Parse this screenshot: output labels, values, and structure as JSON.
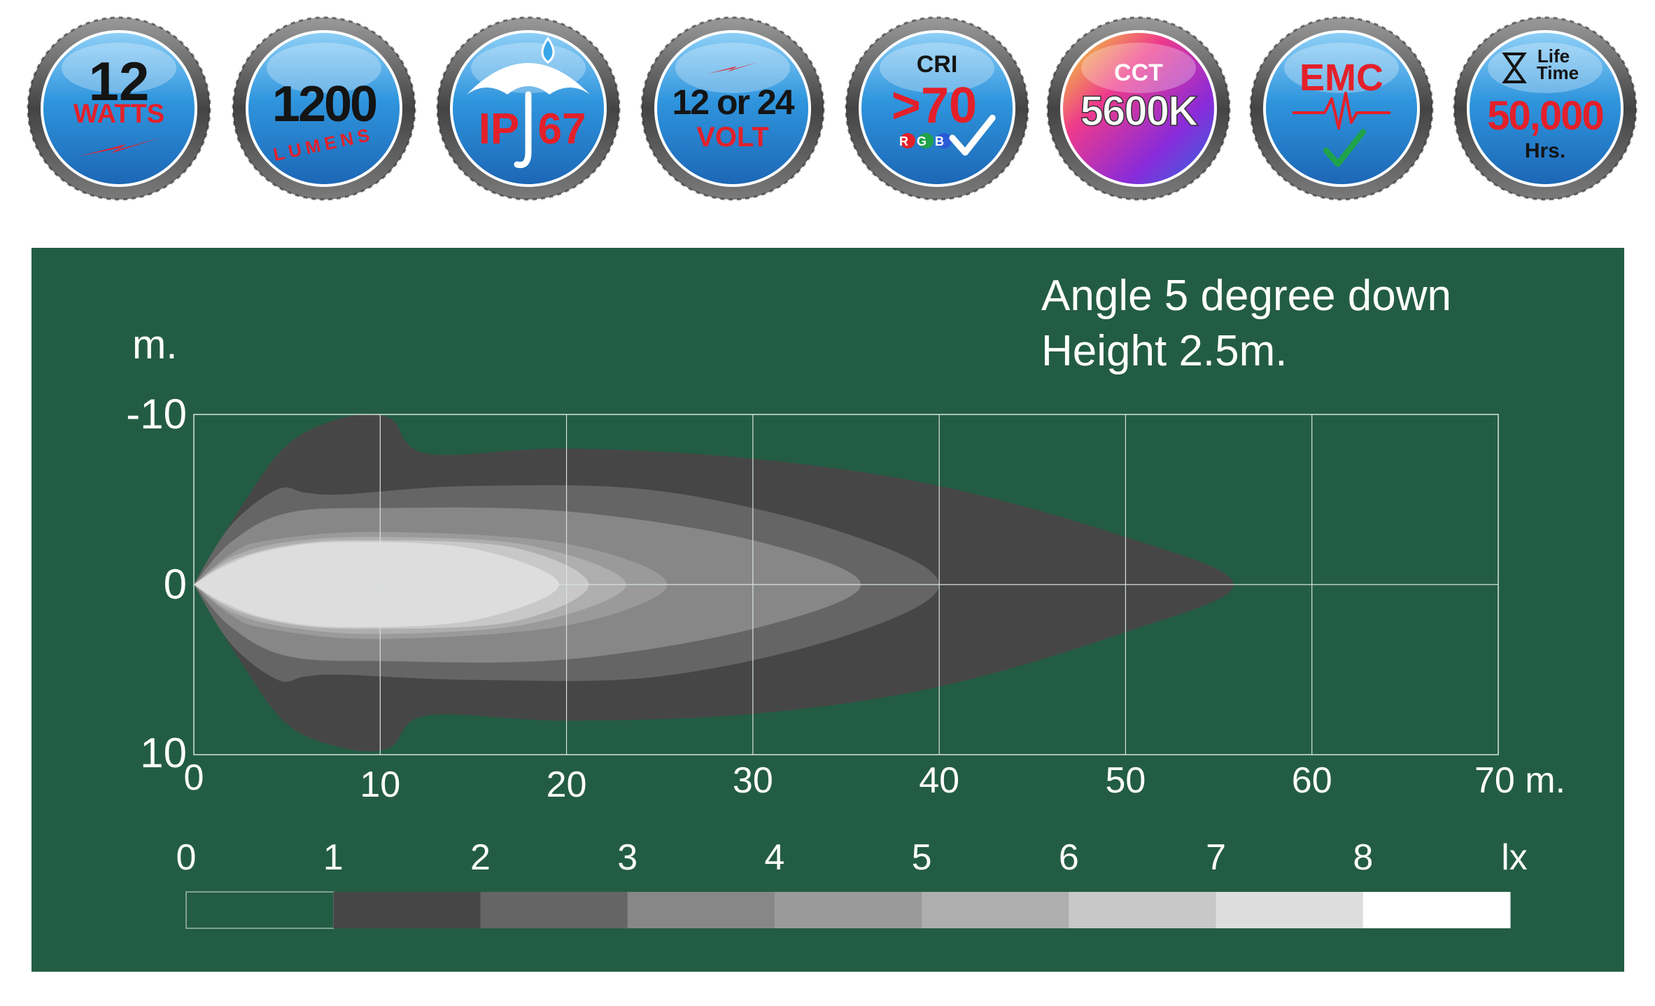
{
  "badges": [
    {
      "lines": [
        "12",
        "WATTS"
      ],
      "colors": [
        "#141414",
        "#e3202a"
      ],
      "icon": "lightning-icon"
    },
    {
      "lines": [
        "1200",
        "LUMENS"
      ],
      "colors": [
        "#141414",
        "#e3202a"
      ],
      "icon": "none"
    },
    {
      "lines": [
        "IP",
        "67"
      ],
      "colors": [
        "#e3202a",
        "#e3202a"
      ],
      "icon": "umbrella-raindrop-icon"
    },
    {
      "lines": [
        "12 or 24",
        "VOLT"
      ],
      "colors": [
        "#141414",
        "#e3202a"
      ],
      "icon": "lightning-icon"
    },
    {
      "lines": [
        "CRI",
        ">70",
        "RGB"
      ],
      "colors": [
        "#141414",
        "#e3202a",
        "#ffffff"
      ],
      "icon": "checkmark-icon"
    },
    {
      "lines": [
        "CCT",
        "5600K"
      ],
      "colors": [
        "#ffffff",
        "#ffffff"
      ],
      "icon": "color-spectrum-icon"
    },
    {
      "lines": [
        "EMC"
      ],
      "colors": [
        "#e3202a"
      ],
      "icon": "pulse-check-icon"
    },
    {
      "lines": [
        "Life",
        "Time",
        "50,000",
        "Hrs."
      ],
      "colors": [
        "#141414",
        "#141414",
        "#e3202a",
        "#141414"
      ],
      "icon": "hourglass-icon"
    }
  ],
  "colors": {
    "panel_background": "#235c44",
    "badge_ring": "#555555",
    "badge_face": "#2f95dd",
    "accent_red": "#e3202a"
  },
  "chart_data": {
    "type": "heatmap",
    "title": "",
    "annotation": [
      "Angle 5 degree down",
      "Height 2.5m."
    ],
    "xlabel": "",
    "ylabel": "m.",
    "x_unit": "m.",
    "xlim": [
      0,
      70
    ],
    "ylim": [
      -10,
      10
    ],
    "xticks": [
      "0",
      "10",
      "20",
      "30",
      "40",
      "50",
      "60",
      "70 m."
    ],
    "yticks": [
      "-10",
      "0",
      "10"
    ],
    "grid": true,
    "legend": {
      "placement": "bottom",
      "unit": "lx",
      "labels": [
        "0",
        "1",
        "2",
        "3",
        "4",
        "5",
        "6",
        "7",
        "8"
      ],
      "colors": [
        "#235c44",
        "#464646",
        "#656565",
        "#878787",
        "#9a9a9a",
        "#aeaeae",
        "#c8c8c8",
        "#dddddd",
        "#ffffff"
      ]
    },
    "contours": [
      {
        "level": 1,
        "color": "#464646",
        "upper": [
          [
            0,
            0
          ],
          [
            2.5,
            -4.5
          ],
          [
            5,
            -8.2
          ],
          [
            8,
            -9.8
          ],
          [
            10.5,
            -9.8
          ],
          [
            12.5,
            -7.7
          ],
          [
            20,
            -8
          ],
          [
            30,
            -7.4
          ],
          [
            40,
            -5.8
          ],
          [
            50,
            -2.8
          ],
          [
            55.8,
            0
          ]
        ],
        "lower": [
          [
            0,
            0
          ],
          [
            2.5,
            4.5
          ],
          [
            5,
            8.2
          ],
          [
            8,
            9.6
          ],
          [
            10.5,
            9.6
          ],
          [
            12.5,
            7.7
          ],
          [
            20,
            8
          ],
          [
            30,
            7.6
          ],
          [
            40,
            6
          ],
          [
            50,
            2.8
          ],
          [
            55.8,
            0
          ]
        ]
      },
      {
        "level": 2,
        "color": "#656565",
        "upper": [
          [
            0,
            0
          ],
          [
            2,
            -3.5
          ],
          [
            4.5,
            -5.6
          ],
          [
            6,
            -5.4
          ],
          [
            8,
            -5.3
          ],
          [
            15,
            -5.8
          ],
          [
            25,
            -5.5
          ],
          [
            35,
            -3
          ],
          [
            40,
            0
          ]
        ],
        "lower": [
          [
            0,
            0
          ],
          [
            2,
            3.5
          ],
          [
            4.5,
            5.6
          ],
          [
            6,
            5.4
          ],
          [
            8,
            5.3
          ],
          [
            15,
            5.6
          ],
          [
            25,
            5.4
          ],
          [
            35,
            3
          ],
          [
            40,
            0
          ]
        ]
      },
      {
        "level": 3,
        "color": "#878787",
        "upper": [
          [
            0,
            0
          ],
          [
            2,
            -2.5
          ],
          [
            5,
            -4.2
          ],
          [
            10,
            -4.5
          ],
          [
            20,
            -4.3
          ],
          [
            30,
            -2.6
          ],
          [
            35.8,
            0
          ]
        ],
        "lower": [
          [
            0,
            0
          ],
          [
            2,
            2.5
          ],
          [
            5,
            4.2
          ],
          [
            10,
            4.5
          ],
          [
            20,
            4.4
          ],
          [
            30,
            2.6
          ],
          [
            35.8,
            0
          ]
        ]
      },
      {
        "level": 4,
        "color": "#9a9a9a",
        "upper": [
          [
            0,
            0
          ],
          [
            2,
            -1.8
          ],
          [
            4,
            -2.6
          ],
          [
            10,
            -3.1
          ],
          [
            20,
            -2.4
          ],
          [
            25.4,
            0
          ]
        ],
        "lower": [
          [
            0,
            0
          ],
          [
            2,
            1.8
          ],
          [
            4,
            2.6
          ],
          [
            10,
            3.2
          ],
          [
            20,
            2.4
          ],
          [
            25.4,
            0
          ]
        ]
      },
      {
        "level": 5,
        "color": "#aeaeae",
        "upper": [
          [
            0,
            0
          ],
          [
            2,
            -1.6
          ],
          [
            5,
            -2.5
          ],
          [
            10,
            -2.8
          ],
          [
            18,
            -2.3
          ],
          [
            23.2,
            0
          ]
        ],
        "lower": [
          [
            0,
            0
          ],
          [
            2,
            1.6
          ],
          [
            5,
            2.5
          ],
          [
            10,
            2.9
          ],
          [
            18,
            2.3
          ],
          [
            23.2,
            0
          ]
        ]
      },
      {
        "level": 6,
        "color": "#c8c8c8",
        "upper": [
          [
            0,
            0
          ],
          [
            2,
            -1.4
          ],
          [
            5,
            -2.3
          ],
          [
            9,
            -2.6
          ],
          [
            17,
            -2.2
          ],
          [
            21.2,
            0
          ]
        ],
        "lower": [
          [
            0,
            0
          ],
          [
            2,
            1.4
          ],
          [
            5,
            2.3
          ],
          [
            9,
            2.6
          ],
          [
            17,
            2.2
          ],
          [
            21.2,
            0
          ]
        ]
      },
      {
        "level": 7,
        "color": "#dddddd",
        "upper": [
          [
            0,
            0
          ],
          [
            1.5,
            -1
          ],
          [
            4,
            -2
          ],
          [
            8,
            -2.5
          ],
          [
            15,
            -2.1
          ],
          [
            19.6,
            0
          ]
        ],
        "lower": [
          [
            0,
            0
          ],
          [
            1.5,
            1
          ],
          [
            4,
            2
          ],
          [
            8,
            2.5
          ],
          [
            15,
            2.1
          ],
          [
            19.6,
            0
          ]
        ]
      }
    ]
  }
}
